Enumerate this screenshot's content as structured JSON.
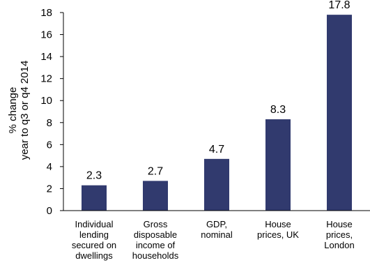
{
  "chart_data": {
    "type": "bar",
    "categories": [
      [
        "Individual",
        "lending",
        "secured on",
        "dwellings"
      ],
      [
        "Gross",
        "disposable",
        "income of",
        "households"
      ],
      [
        "GDP,",
        "nominal"
      ],
      [
        "House",
        "prices, UK"
      ],
      [
        "House",
        "prices,",
        "London"
      ]
    ],
    "values": [
      2.3,
      2.7,
      4.7,
      8.3,
      17.8
    ],
    "value_labels": [
      "2.3",
      "2.7",
      "4.7",
      "8.3",
      "17.8"
    ],
    "ylabel": [
      "% change",
      "year to q3 or q4 2014"
    ],
    "ylim": [
      0,
      18
    ],
    "yticks": [
      "0",
      "2",
      "4",
      "6",
      "8",
      "10",
      "12",
      "14",
      "16",
      "18"
    ],
    "grid": false,
    "colors": {
      "bar": "#313A6E",
      "axis": "#000000"
    }
  }
}
